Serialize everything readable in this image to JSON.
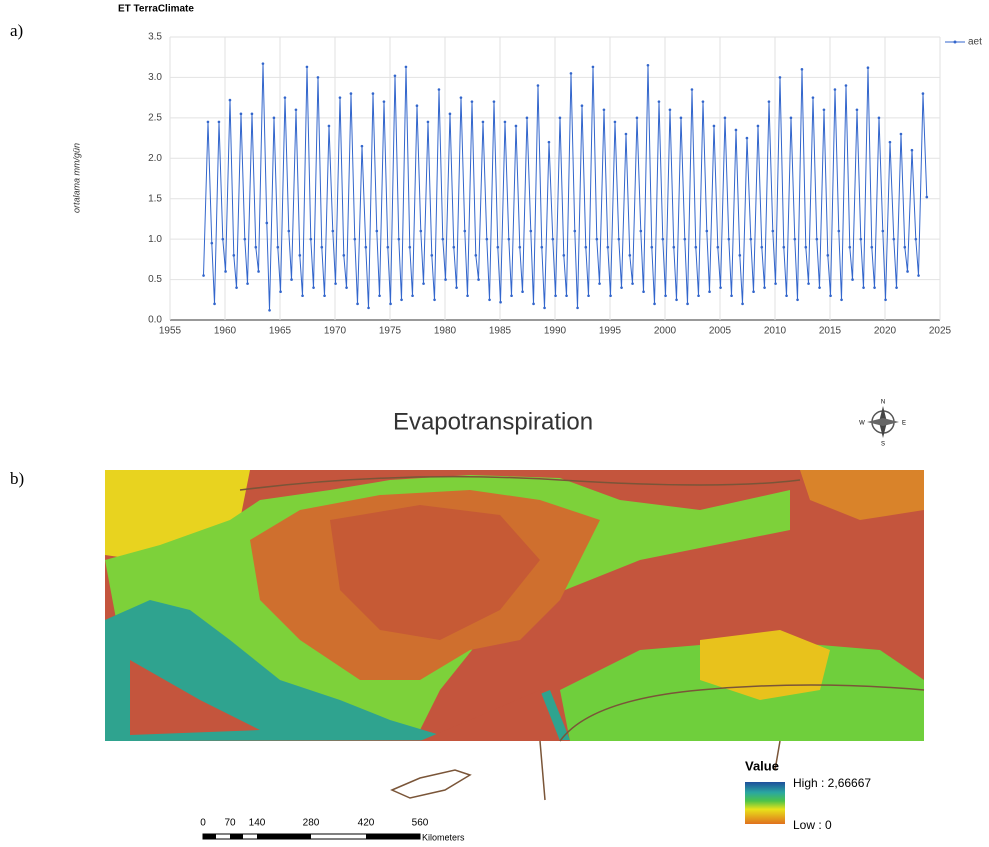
{
  "chart_data": {
    "type": "line",
    "title": "ET TerraClimate",
    "y_label": "ortalama mm/gün",
    "panel_label": "a)",
    "xlim": [
      1955,
      2025
    ],
    "xticks": [
      1955,
      1960,
      1965,
      1970,
      1975,
      1980,
      1985,
      1990,
      1995,
      2000,
      2005,
      2010,
      2015,
      2020,
      2025
    ],
    "ylim": [
      0,
      3.5
    ],
    "yticks": [
      {
        "value": 0,
        "label": "0.0"
      },
      {
        "value": 0.5,
        "label": "0.5"
      },
      {
        "value": 1,
        "label": "1.0"
      },
      {
        "value": 1.5,
        "label": "1.5"
      },
      {
        "value": 2,
        "label": "2.0"
      },
      {
        "value": 2.5,
        "label": "2.5"
      },
      {
        "value": 3,
        "label": "3.0"
      },
      {
        "value": 3.5,
        "label": "3.5"
      }
    ],
    "grid": true,
    "legend": "right",
    "x": [
      1958.05,
      1958.45,
      1958.8,
      1959.05,
      1959.45,
      1959.8,
      1960.05,
      1960.45,
      1960.8,
      1961.05,
      1961.45,
      1961.8,
      1962.05,
      1962.45,
      1962.8,
      1963.05,
      1963.45,
      1963.8,
      1964.05,
      1964.45,
      1964.8,
      1965.05,
      1965.45,
      1965.8,
      1966.05,
      1966.45,
      1966.8,
      1967.05,
      1967.45,
      1967.8,
      1968.05,
      1968.45,
      1968.8,
      1969.05,
      1969.45,
      1969.8,
      1970.05,
      1970.45,
      1970.8,
      1971.05,
      1971.45,
      1971.8,
      1972.05,
      1972.45,
      1972.8,
      1973.05,
      1973.45,
      1973.8,
      1974.05,
      1974.45,
      1974.8,
      1975.05,
      1975.45,
      1975.8,
      1976.05,
      1976.45,
      1976.8,
      1977.05,
      1977.45,
      1977.8,
      1978.05,
      1978.45,
      1978.8,
      1979.05,
      1979.45,
      1979.8,
      1980.05,
      1980.45,
      1980.8,
      1981.05,
      1981.45,
      1981.8,
      1982.05,
      1982.45,
      1982.8,
      1983.05,
      1983.45,
      1983.8,
      1984.05,
      1984.45,
      1984.8,
      1985.05,
      1985.45,
      1985.8,
      1986.05,
      1986.45,
      1986.8,
      1987.05,
      1987.45,
      1987.8,
      1988.05,
      1988.45,
      1988.8,
      1989.05,
      1989.45,
      1989.8,
      1990.05,
      1990.45,
      1990.8,
      1991.05,
      1991.45,
      1991.8,
      1992.05,
      1992.45,
      1992.8,
      1993.05,
      1993.45,
      1993.8,
      1994.05,
      1994.45,
      1994.8,
      1995.05,
      1995.45,
      1995.8,
      1996.05,
      1996.45,
      1996.8,
      1997.05,
      1997.45,
      1997.8,
      1998.05,
      1998.45,
      1998.8,
      1999.05,
      1999.45,
      1999.8,
      2000.05,
      2000.45,
      2000.8,
      2001.05,
      2001.45,
      2001.8,
      2002.05,
      2002.45,
      2002.8,
      2003.05,
      2003.45,
      2003.8,
      2004.05,
      2004.45,
      2004.8,
      2005.05,
      2005.45,
      2005.8,
      2006.05,
      2006.45,
      2006.8,
      2007.05,
      2007.45,
      2007.8,
      2008.05,
      2008.45,
      2008.8,
      2009.05,
      2009.45,
      2009.8,
      2010.05,
      2010.45,
      2010.8,
      2011.05,
      2011.45,
      2011.8,
      2012.05,
      2012.45,
      2012.8,
      2013.05,
      2013.45,
      2013.8,
      2014.05,
      2014.45,
      2014.8,
      2015.05,
      2015.45,
      2015.8,
      2016.05,
      2016.45,
      2016.8,
      2017.05,
      2017.45,
      2017.8,
      2018.05,
      2018.45,
      2018.8,
      2019.05,
      2019.45,
      2019.8,
      2020.05,
      2020.45,
      2020.8,
      2021.05,
      2021.45,
      2021.8,
      2022.05,
      2022.45,
      2022.8,
      2023.05,
      2023.45,
      2023.8
    ],
    "series": [
      {
        "name": "aet",
        "color": "#3366cc",
        "values": [
          0.55,
          2.45,
          0.95,
          0.2,
          2.45,
          1.0,
          0.6,
          2.72,
          0.8,
          0.4,
          2.55,
          1.0,
          0.45,
          2.55,
          0.9,
          0.6,
          3.17,
          1.2,
          0.12,
          2.5,
          0.9,
          0.35,
          2.75,
          1.1,
          0.5,
          2.6,
          0.8,
          0.3,
          3.13,
          1.0,
          0.4,
          3.0,
          0.9,
          0.3,
          2.4,
          1.1,
          0.45,
          2.75,
          0.8,
          0.4,
          2.8,
          1.0,
          0.2,
          2.15,
          0.9,
          0.15,
          2.8,
          1.1,
          0.3,
          2.7,
          0.9,
          0.2,
          3.02,
          1.0,
          0.25,
          3.13,
          0.9,
          0.3,
          2.65,
          1.1,
          0.45,
          2.45,
          0.8,
          0.25,
          2.85,
          1.0,
          0.5,
          2.55,
          0.9,
          0.4,
          2.75,
          1.1,
          0.3,
          2.7,
          0.8,
          0.5,
          2.45,
          1.0,
          0.25,
          2.7,
          0.9,
          0.22,
          2.45,
          1.0,
          0.3,
          2.4,
          0.9,
          0.35,
          2.5,
          1.1,
          0.2,
          2.9,
          0.9,
          0.15,
          2.2,
          1.0,
          0.3,
          2.5,
          0.8,
          0.3,
          3.05,
          1.1,
          0.15,
          2.65,
          0.9,
          0.3,
          3.13,
          1.0,
          0.45,
          2.6,
          0.9,
          0.3,
          2.45,
          1.0,
          0.4,
          2.3,
          0.8,
          0.45,
          2.5,
          1.1,
          0.35,
          3.15,
          0.9,
          0.2,
          2.7,
          1.0,
          0.3,
          2.6,
          0.9,
          0.25,
          2.5,
          1.0,
          0.2,
          2.85,
          0.9,
          0.3,
          2.7,
          1.1,
          0.35,
          2.4,
          0.9,
          0.4,
          2.5,
          1.0,
          0.3,
          2.35,
          0.8,
          0.2,
          2.25,
          1.0,
          0.35,
          2.4,
          0.9,
          0.4,
          2.7,
          1.1,
          0.45,
          3.0,
          0.9,
          0.3,
          2.5,
          1.0,
          0.25,
          3.1,
          0.9,
          0.45,
          2.75,
          1.0,
          0.4,
          2.6,
          0.8,
          0.3,
          2.85,
          1.1,
          0.25,
          2.9,
          0.9,
          0.5,
          2.6,
          1.0,
          0.4,
          3.12,
          0.9,
          0.4,
          2.5,
          1.1,
          0.25,
          2.2,
          1.0,
          0.4,
          2.3,
          0.9,
          0.6,
          2.1,
          1.0,
          0.55,
          2.8,
          1.52
        ]
      }
    ]
  },
  "map": {
    "panel_label": "b)",
    "title": "Evapotranspiration",
    "compass": [
      "N",
      "S",
      "E",
      "W"
    ],
    "legend_title": "Value",
    "legend_high": "High : 2,66667",
    "legend_low": "Low : 0",
    "scale_labels": [
      "0",
      "70",
      "140",
      "280",
      "420",
      "560"
    ],
    "scale_unit": "Kilometers"
  }
}
